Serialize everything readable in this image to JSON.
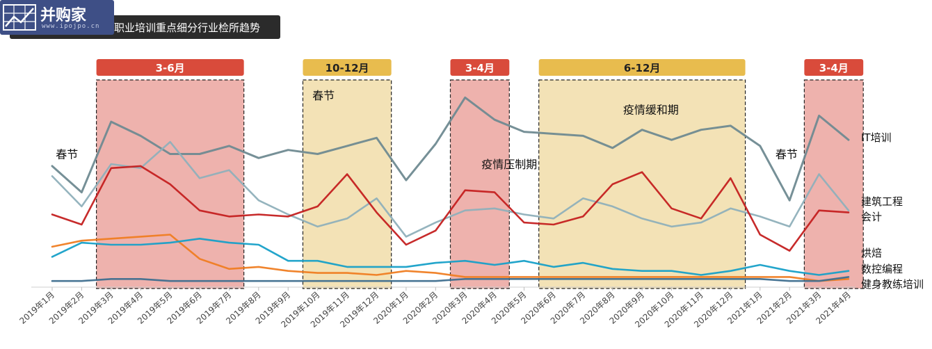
{
  "title": "职业培训重点细分行业检所趋势",
  "logo": {
    "name": "并购家",
    "sub": "www.ipojpo.cn"
  },
  "colors": {
    "period_red_fill": "#eeb2ad",
    "period_red_header": "#d94b3b",
    "period_yellow_fill": "#f3e2b6",
    "period_yellow_header": "#e8bc4e"
  },
  "periods": [
    {
      "label": "3-6月",
      "start": 2,
      "end": 6,
      "color": "red"
    },
    {
      "label": "10-12月",
      "start": 9,
      "end": 11,
      "color": "yellow"
    },
    {
      "label": "3-4月",
      "start": 14,
      "end": 15,
      "color": "red"
    },
    {
      "label": "6-12月",
      "start": 17,
      "end": 23,
      "color": "yellow"
    },
    {
      "label": "3-4月",
      "start": 26,
      "end": 27,
      "color": "red"
    }
  ],
  "annotations": [
    {
      "text": "春节",
      "at": 0.5,
      "value": 63
    },
    {
      "text": "春节",
      "at": 9.2,
      "value": 92
    },
    {
      "text": "疫情缓和期",
      "at": 20.3,
      "value": 85
    },
    {
      "text": "疫情压制期",
      "at": 15.5,
      "value": 58
    },
    {
      "text": "春节",
      "at": 24.9,
      "value": 63
    }
  ],
  "chart_data": {
    "type": "line",
    "title": "职业培训重点细分行业检所趋势",
    "xlabel": "",
    "ylabel": "",
    "ylim": [
      0,
      100
    ],
    "grid": false,
    "legend": "right",
    "categories": [
      "2019年1月",
      "2019年2月",
      "2019年3月",
      "2019年4月",
      "2019年5月",
      "2019年6月",
      "2019年7月",
      "2019年8月",
      "2019年9月",
      "2019年10月",
      "2019年11月",
      "2019年12月",
      "2020年1月",
      "2020年2月",
      "2020年3月",
      "2020年4月",
      "2020年5月",
      "2020年6月",
      "2020年7月",
      "2020年8月",
      "2020年9月",
      "2020年10月",
      "2020年11月",
      "2020年12月",
      "2021年1月",
      "2021年2月",
      "2021年3月",
      "2021年4月"
    ],
    "series": [
      {
        "name": "IT培训",
        "color": "#6f8a91",
        "values": [
          59,
          46,
          81,
          74,
          65,
          65,
          69,
          63,
          67,
          65,
          69,
          73,
          52,
          70,
          93,
          82,
          76,
          75,
          74,
          68,
          77,
          72,
          77,
          79,
          69,
          42,
          84,
          72
        ]
      },
      {
        "name": "建筑工程",
        "color": "#8fb0ba",
        "values": [
          54,
          39,
          60,
          58,
          71,
          53,
          57,
          42,
          35,
          29,
          33,
          43,
          24,
          31,
          37,
          38,
          35,
          33,
          43,
          39,
          33,
          29,
          31,
          38,
          34,
          29,
          55,
          37
        ]
      },
      {
        "name": "会计",
        "color": "#c42020",
        "values": [
          35,
          30,
          58,
          59,
          50,
          37,
          34,
          35,
          34,
          39,
          55,
          36,
          20,
          27,
          47,
          46,
          31,
          30,
          34,
          50,
          56,
          38,
          33,
          53,
          25,
          17,
          37,
          36
        ]
      },
      {
        "name": "烘焙",
        "color": "#ef7d22",
        "values": [
          19,
          22,
          23,
          24,
          25,
          13,
          8,
          9,
          7,
          6,
          6,
          5,
          7,
          6,
          4,
          4,
          4,
          4,
          4,
          4,
          4,
          4,
          4,
          4,
          4,
          4,
          2,
          3
        ]
      },
      {
        "name": "数控编程",
        "color": "#17a0c8",
        "values": [
          14,
          21,
          20,
          20,
          21,
          23,
          21,
          20,
          12,
          12,
          9,
          9,
          9,
          11,
          12,
          10,
          12,
          9,
          11,
          8,
          7,
          7,
          5,
          7,
          10,
          7,
          5,
          7
        ]
      },
      {
        "name": "健身教练培训",
        "color": "#3f6f8f",
        "values": [
          2,
          2,
          3,
          3,
          2,
          2,
          2,
          2,
          2,
          2,
          2,
          2,
          2,
          2,
          3,
          3,
          3,
          3,
          3,
          3,
          3,
          3,
          3,
          3,
          3,
          2,
          2,
          4
        ]
      }
    ]
  }
}
